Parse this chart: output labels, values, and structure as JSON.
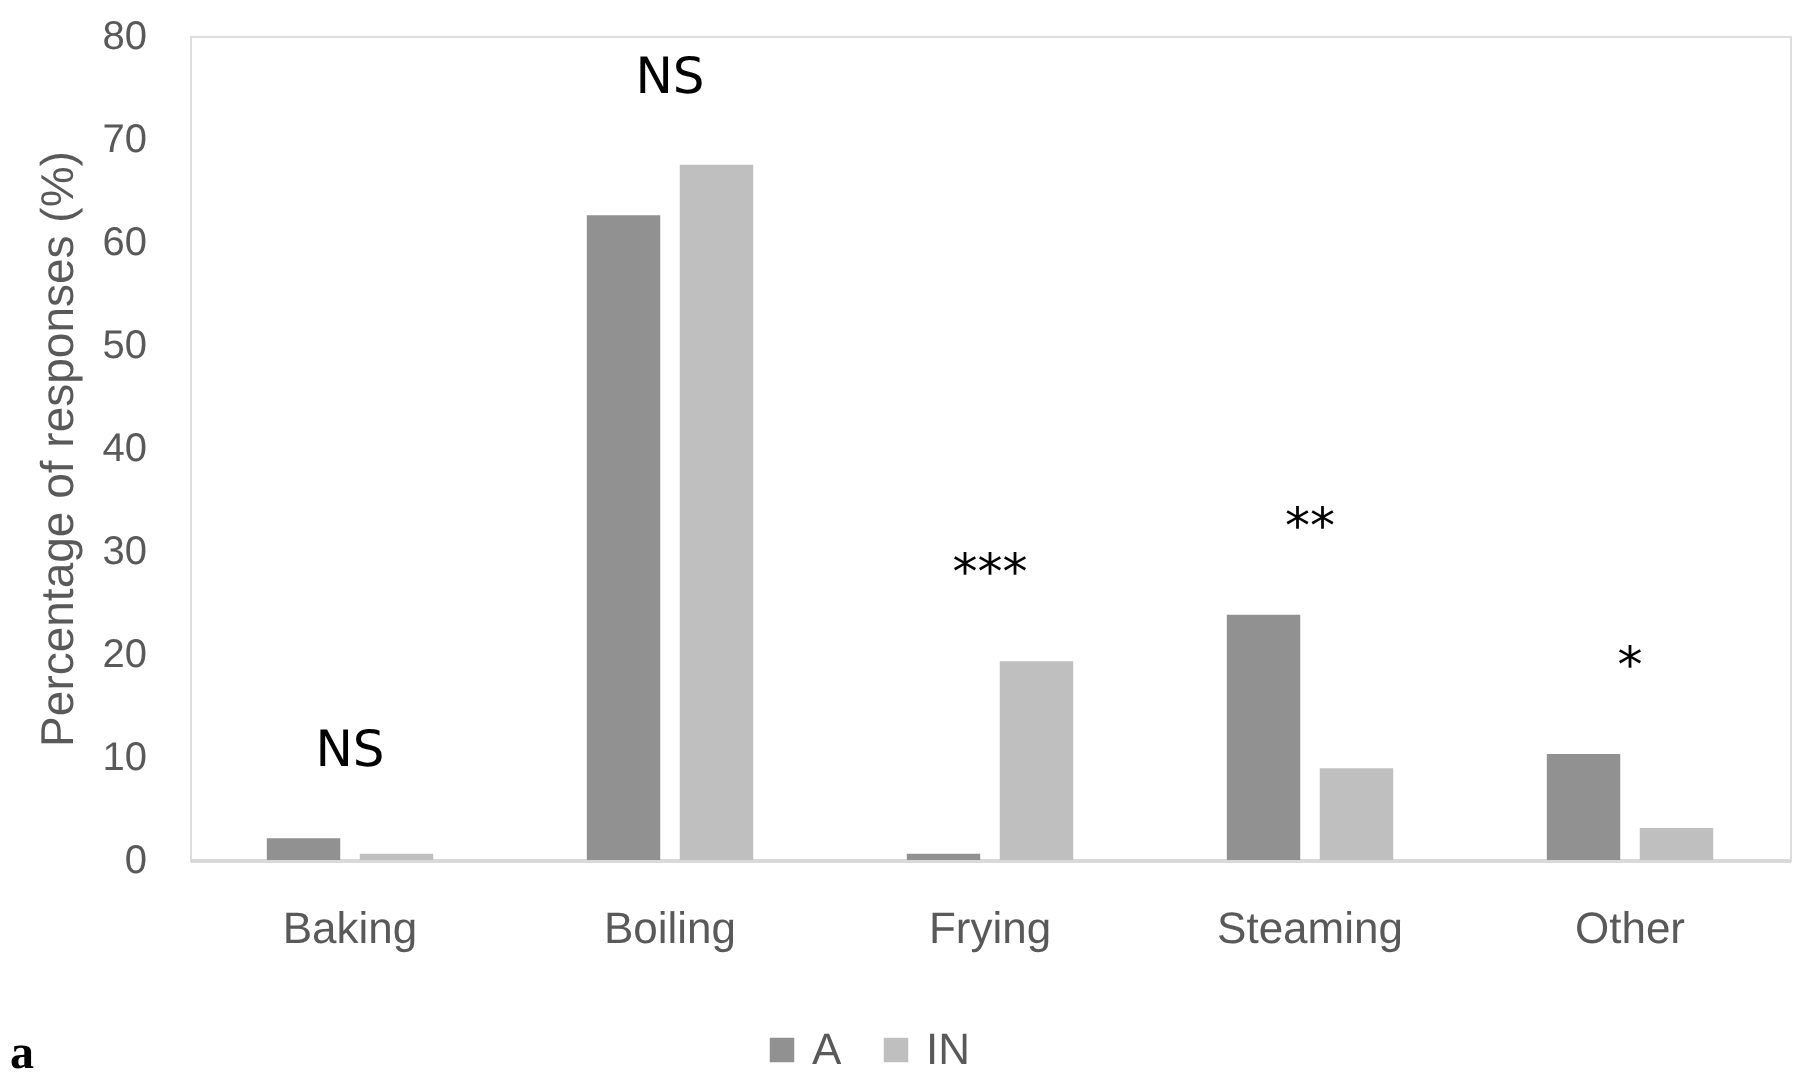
{
  "chart_data": {
    "type": "bar",
    "ylabel": "Percentage of responses (%)",
    "categories": [
      "Baking",
      "Boiling",
      "Frying",
      "Steaming",
      "Other"
    ],
    "series": [
      {
        "name": "A",
        "color": "#919191",
        "values": [
          2.1,
          62.6,
          0.6,
          23.8,
          10.3
        ]
      },
      {
        "name": "IN",
        "color": "#bfbfbf",
        "values": [
          0.6,
          67.5,
          19.3,
          8.9,
          3.1
        ]
      }
    ],
    "ylim": [
      0,
      80
    ],
    "yticks": [
      0,
      10,
      20,
      30,
      40,
      50,
      60,
      70,
      80
    ],
    "legend": "bottom",
    "annotations": [
      "NS",
      "NS",
      "***",
      "**",
      "*",
      "a"
    ]
  }
}
